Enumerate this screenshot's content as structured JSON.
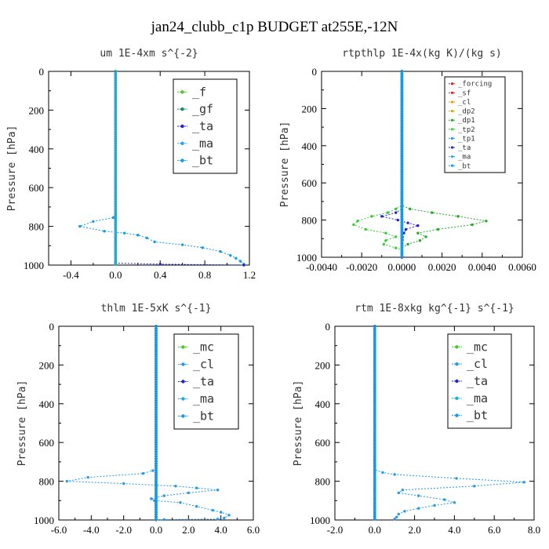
{
  "title": "jan24_clubb_c1p  BUDGET at255E,-12N",
  "chart_data": [
    {
      "type": "line",
      "title": "um   1E-4xm s^{-2}",
      "ylabel": "Pressure [hPa]",
      "xlim": [
        -0.6,
        1.2
      ],
      "ylim": [
        1000,
        0
      ],
      "xticks": [
        "-0.4",
        "0.0",
        "0.4",
        "0.8",
        "1.2"
      ],
      "xtick_values": [
        -0.4,
        0.0,
        0.4,
        0.8,
        1.2
      ],
      "yticks": [
        "0",
        "200",
        "400",
        "600",
        "800",
        "1000"
      ],
      "ytick_values": [
        0,
        200,
        400,
        600,
        800,
        1000
      ],
      "legend_size": "large",
      "series": [
        {
          "name": "_f",
          "color": "#44cc22",
          "points": [
            [
              0,
              0
            ],
            [
              0,
              1000
            ]
          ]
        },
        {
          "name": "_gf",
          "color": "#118866",
          "points": [
            [
              0,
              0
            ],
            [
              0,
              1000
            ]
          ]
        },
        {
          "name": "_ta",
          "color": "#2222cc",
          "points": [
            [
              0,
              0
            ],
            [
              0,
              990
            ],
            [
              0.4,
              995
            ],
            [
              1.15,
              1000
            ]
          ]
        },
        {
          "name": "_ma",
          "color": "#22aadd",
          "points": [
            [
              0,
              0
            ],
            [
              0,
              1000
            ]
          ]
        },
        {
          "name": "_bt",
          "color": "#1199ee",
          "points": [
            [
              0,
              0
            ],
            [
              0,
              740
            ],
            [
              -0.02,
              755
            ],
            [
              -0.2,
              775
            ],
            [
              -0.32,
              800
            ],
            [
              -0.1,
              825
            ],
            [
              0.08,
              835
            ],
            [
              0.2,
              845
            ],
            [
              0.28,
              860
            ],
            [
              0.35,
              880
            ],
            [
              0.6,
              895
            ],
            [
              0.78,
              910
            ],
            [
              0.94,
              930
            ],
            [
              1.03,
              950
            ],
            [
              1.08,
              965
            ],
            [
              1.12,
              980
            ],
            [
              1.15,
              995
            ]
          ]
        }
      ]
    },
    {
      "type": "line",
      "title": "rtpthlp   1E-4x(kg K)/(kg s)",
      "ylabel": "Pressure [hPa]",
      "xlim": [
        -0.004,
        0.006
      ],
      "ylim": [
        1000,
        0
      ],
      "xticks": [
        "-0.0040",
        "-0.0020",
        "0.0000",
        "0.0020",
        "0.0040",
        "0.0060"
      ],
      "xtick_values": [
        -0.004,
        -0.002,
        0.0,
        0.002,
        0.004,
        0.006
      ],
      "yticks": [
        "0",
        "200",
        "400",
        "600",
        "800",
        "1000"
      ],
      "ytick_values": [
        0,
        200,
        400,
        600,
        800,
        1000
      ],
      "legend_size": "small",
      "series": [
        {
          "name": "_forcing",
          "color": "#cc2222",
          "points": [
            [
              0,
              0
            ],
            [
              0,
              1000
            ]
          ]
        },
        {
          "name": "_sf",
          "color": "#ee2222",
          "points": [
            [
              0,
              0
            ],
            [
              0,
              1000
            ]
          ]
        },
        {
          "name": "_cl",
          "color": "#ee9900",
          "points": [
            [
              0,
              0
            ],
            [
              0,
              1000
            ]
          ]
        },
        {
          "name": "_dp2",
          "color": "#ccaa00",
          "points": [
            [
              0,
              0
            ],
            [
              0,
              1000
            ]
          ]
        },
        {
          "name": "_dp1",
          "color": "#22aa22",
          "points": [
            [
              0,
              0
            ],
            [
              0,
              1000
            ]
          ]
        },
        {
          "name": "_tp2",
          "color": "#33cc33",
          "points": [
            [
              0,
              0
            ],
            [
              0,
              720
            ],
            [
              -0.0003,
              740
            ],
            [
              -0.0007,
              760
            ],
            [
              -0.0015,
              780
            ],
            [
              -0.0022,
              805
            ],
            [
              -0.0024,
              825
            ],
            [
              -0.0018,
              850
            ],
            [
              -0.0008,
              870
            ],
            [
              -0.0003,
              890
            ],
            [
              -0.0008,
              910
            ],
            [
              -0.0009,
              930
            ],
            [
              -0.0003,
              950
            ],
            [
              0,
              960
            ],
            [
              0,
              1000
            ]
          ]
        },
        {
          "name": "_tp1",
          "color": "#2299ee",
          "points": [
            [
              0,
              0
            ],
            [
              0,
              1000
            ]
          ]
        },
        {
          "name": "_ta",
          "color": "#2222cc",
          "points": [
            [
              0,
              0
            ],
            [
              0,
              740
            ],
            [
              -0.0003,
              760
            ],
            [
              -0.001,
              780
            ],
            [
              -0.0002,
              800
            ],
            [
              0.0003,
              815
            ],
            [
              0.0008,
              830
            ],
            [
              0.0002,
              850
            ],
            [
              0.0001,
              870
            ],
            [
              0,
              1000
            ]
          ]
        },
        {
          "name": "_ma",
          "color": "#22aadd",
          "points": [
            [
              0,
              0
            ],
            [
              0,
              1000
            ]
          ]
        },
        {
          "name": "_bt",
          "color": "#1199ee",
          "points": [
            [
              0,
              0
            ],
            [
              0,
              1000
            ]
          ]
        },
        {
          "name": "",
          "color": "#22aa22",
          "points": [
            [
              0,
              0
            ],
            [
              0,
              720
            ],
            [
              0.0004,
              740
            ],
            [
              0.0015,
              760
            ],
            [
              0.0028,
              780
            ],
            [
              0.0042,
              805
            ],
            [
              0.0035,
              825
            ],
            [
              0.0018,
              850
            ],
            [
              0.0008,
              870
            ],
            [
              0.0012,
              890
            ],
            [
              0.0009,
              910
            ],
            [
              0.0003,
              930
            ],
            [
              0,
              950
            ],
            [
              0,
              1000
            ]
          ]
        }
      ]
    },
    {
      "type": "line",
      "title": "thlm   1E-5xK s^{-1}",
      "ylabel": "Pressure [hPa]",
      "xlim": [
        -6.0,
        6.0
      ],
      "ylim": [
        1000,
        0
      ],
      "xticks": [
        "-6.0",
        "-4.0",
        "-2.0",
        "0.0",
        "2.0",
        "4.0",
        "6.0"
      ],
      "xtick_values": [
        -6,
        -4,
        -2,
        0,
        2,
        4,
        6
      ],
      "yticks": [
        "0",
        "200",
        "400",
        "600",
        "800",
        "1000"
      ],
      "ytick_values": [
        0,
        200,
        400,
        600,
        800,
        1000
      ],
      "legend_size": "large",
      "series": [
        {
          "name": "_mc",
          "color": "#44cc22",
          "points": [
            [
              0,
              0
            ],
            [
              0,
              1000
            ]
          ]
        },
        {
          "name": "_cl",
          "color": "#2299ee",
          "points": [
            [
              0,
              0
            ],
            [
              0,
              730
            ],
            [
              -0.2,
              745
            ],
            [
              -0.8,
              760
            ],
            [
              -4.2,
              780
            ],
            [
              -5.5,
              800
            ],
            [
              -2.0,
              812
            ],
            [
              1.2,
              825
            ],
            [
              2.5,
              835
            ],
            [
              3.8,
              845
            ],
            [
              2.0,
              860
            ],
            [
              0.5,
              875
            ],
            [
              -0.3,
              890
            ],
            [
              -0.1,
              900
            ],
            [
              1.5,
              910
            ],
            [
              2.5,
              930
            ],
            [
              3.5,
              950
            ],
            [
              4.0,
              960
            ],
            [
              4.5,
              975
            ],
            [
              4.2,
              990
            ],
            [
              3.8,
              995
            ],
            [
              0.5,
              998
            ],
            [
              0,
              1000
            ]
          ]
        },
        {
          "name": "_ta",
          "color": "#2222cc",
          "points": [
            [
              0,
              0
            ],
            [
              0,
              1000
            ]
          ]
        },
        {
          "name": "_ma",
          "color": "#22aadd",
          "points": [
            [
              0,
              0
            ],
            [
              0,
              1000
            ]
          ]
        },
        {
          "name": "_bt",
          "color": "#1199ee",
          "points": [
            [
              0,
              0
            ],
            [
              0,
              1000
            ]
          ]
        }
      ]
    },
    {
      "type": "line",
      "title": "rtm   1E-8xkg kg^{-1} s^{-1}",
      "ylabel": "Pressure [hPa]",
      "xlim": [
        -2.0,
        8.0
      ],
      "ylim": [
        1000,
        0
      ],
      "xticks": [
        "-2.0",
        "0.0",
        "2.0",
        "4.0",
        "6.0",
        "8.0"
      ],
      "xtick_values": [
        -2,
        0,
        2,
        4,
        6,
        8
      ],
      "yticks": [
        "0",
        "200",
        "400",
        "600",
        "800",
        "1000"
      ],
      "ytick_values": [
        0,
        200,
        400,
        600,
        800,
        1000
      ],
      "legend_size": "large",
      "series": [
        {
          "name": "_mc",
          "color": "#44cc22",
          "points": [
            [
              0,
              0
            ],
            [
              0,
              1000
            ]
          ]
        },
        {
          "name": "_cl",
          "color": "#2299ee",
          "points": [
            [
              0,
              0
            ],
            [
              0,
              740
            ],
            [
              0.4,
              755
            ],
            [
              1.0,
              765
            ],
            [
              4.1,
              785
            ],
            [
              7.5,
              805
            ],
            [
              5.0,
              825
            ],
            [
              1.4,
              845
            ],
            [
              1.2,
              860
            ],
            [
              2.2,
              875
            ],
            [
              3.5,
              895
            ],
            [
              4.0,
              910
            ],
            [
              3.0,
              925
            ],
            [
              2.2,
              940
            ],
            [
              1.5,
              955
            ],
            [
              1.2,
              970
            ],
            [
              1.1,
              985
            ],
            [
              1.0,
              995
            ]
          ]
        },
        {
          "name": "_ta",
          "color": "#2222cc",
          "points": [
            [
              0,
              0
            ],
            [
              0,
              1000
            ]
          ]
        },
        {
          "name": "_ma",
          "color": "#22aadd",
          "points": [
            [
              0,
              0
            ],
            [
              0,
              1000
            ]
          ]
        },
        {
          "name": "_bt",
          "color": "#1199ee",
          "points": [
            [
              0,
              0
            ],
            [
              0,
              1000
            ]
          ]
        }
      ]
    }
  ]
}
